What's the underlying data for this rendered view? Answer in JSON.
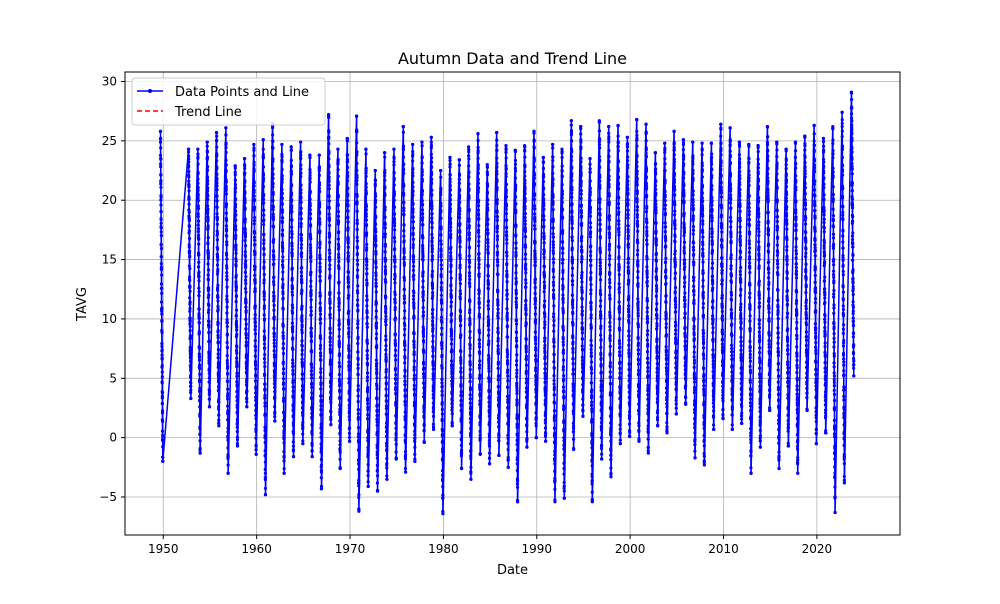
{
  "chart_data": {
    "type": "line",
    "title": "Autumn Data and Trend Line",
    "xlabel": "Date",
    "ylabel": "TAVG",
    "xlim": [
      1945.9,
      2028.9
    ],
    "ylim": [
      -8.2,
      30.8
    ],
    "x_ticks": [
      1950,
      1960,
      1970,
      1980,
      1990,
      2000,
      2010,
      2020
    ],
    "x_tick_labels": [
      "1950",
      "1960",
      "1970",
      "1980",
      "1990",
      "2000",
      "2010",
      "2020"
    ],
    "y_ticks": [
      -5,
      0,
      5,
      10,
      15,
      20,
      25,
      30
    ],
    "y_tick_labels": [
      "−5",
      "0",
      "5",
      "10",
      "15",
      "20",
      "25",
      "30"
    ],
    "grid": true,
    "legend_position": "upper-left",
    "series": [
      {
        "name": "Data Points and Line",
        "color": "#0000ff",
        "style": "solid-with-point-markers",
        "points_per_season": 90,
        "seasons": [
          {
            "year": 1949.7,
            "start": 25.8,
            "min": -2.0
          },
          {
            "year": 1952.7,
            "start": 24.3,
            "min": 3.3
          },
          {
            "year": 1953.7,
            "start": 24.3,
            "min": -1.3
          },
          {
            "year": 1954.7,
            "start": 24.9,
            "min": 2.6
          },
          {
            "year": 1955.7,
            "start": 25.7,
            "min": 1.0
          },
          {
            "year": 1956.7,
            "start": 26.1,
            "min": -3.0
          },
          {
            "year": 1957.7,
            "start": 22.9,
            "min": -0.7
          },
          {
            "year": 1958.7,
            "start": 23.5,
            "min": 2.6
          },
          {
            "year": 1959.7,
            "start": 24.7,
            "min": -1.4
          },
          {
            "year": 1960.7,
            "start": 25.1,
            "min": -4.8
          },
          {
            "year": 1961.7,
            "start": 26.5,
            "min": 1.4
          },
          {
            "year": 1962.7,
            "start": 24.7,
            "min": -3.0
          },
          {
            "year": 1963.7,
            "start": 24.5,
            "min": -1.6
          },
          {
            "year": 1964.7,
            "start": 24.9,
            "min": -0.5
          },
          {
            "year": 1965.7,
            "start": 23.8,
            "min": -1.6
          },
          {
            "year": 1966.7,
            "start": 23.8,
            "min": -4.3
          },
          {
            "year": 1967.7,
            "start": 27.2,
            "min": 1.1
          },
          {
            "year": 1968.7,
            "start": 24.3,
            "min": -2.6
          },
          {
            "year": 1969.7,
            "start": 25.2,
            "min": -0.3
          },
          {
            "year": 1970.7,
            "start": 27.1,
            "min": -6.2
          },
          {
            "year": 1971.7,
            "start": 24.3,
            "min": -4.1
          },
          {
            "year": 1972.7,
            "start": 22.5,
            "min": -4.5
          },
          {
            "year": 1973.7,
            "start": 24.0,
            "min": -3.5
          },
          {
            "year": 1974.7,
            "start": 24.3,
            "min": -1.8
          },
          {
            "year": 1975.7,
            "start": 26.2,
            "min": -2.9
          },
          {
            "year": 1976.7,
            "start": 24.7,
            "min": -2.0
          },
          {
            "year": 1977.7,
            "start": 24.9,
            "min": -0.4
          },
          {
            "year": 1978.7,
            "start": 25.3,
            "min": 0.7
          },
          {
            "year": 1979.7,
            "start": 22.5,
            "min": -6.4
          },
          {
            "year": 1980.7,
            "start": 23.6,
            "min": 1.0
          },
          {
            "year": 1981.7,
            "start": 23.4,
            "min": -2.6
          },
          {
            "year": 1982.7,
            "start": 24.5,
            "min": -3.5
          },
          {
            "year": 1983.7,
            "start": 25.6,
            "min": -1.4
          },
          {
            "year": 1984.7,
            "start": 23.0,
            "min": -2.2
          },
          {
            "year": 1985.7,
            "start": 25.7,
            "min": -1.5
          },
          {
            "year": 1986.7,
            "start": 24.6,
            "min": -2.5
          },
          {
            "year": 1987.7,
            "start": 24.2,
            "min": -5.4
          },
          {
            "year": 1988.7,
            "start": 24.6,
            "min": -0.8
          },
          {
            "year": 1989.7,
            "start": 25.8,
            "min": 0.0
          },
          {
            "year": 1990.7,
            "start": 23.6,
            "min": -0.3
          },
          {
            "year": 1991.7,
            "start": 24.7,
            "min": -5.4
          },
          {
            "year": 1992.7,
            "start": 24.3,
            "min": -5.1
          },
          {
            "year": 1993.7,
            "start": 26.7,
            "min": -1.0
          },
          {
            "year": 1994.7,
            "start": 26.2,
            "min": 1.8
          },
          {
            "year": 1995.7,
            "start": 23.5,
            "min": -5.4
          },
          {
            "year": 1996.7,
            "start": 26.7,
            "min": -1.8
          },
          {
            "year": 1997.7,
            "start": 26.2,
            "min": -3.3
          },
          {
            "year": 1998.7,
            "start": 26.3,
            "min": -0.5
          },
          {
            "year": 1999.7,
            "start": 25.3,
            "min": 0.1
          },
          {
            "year": 2000.7,
            "start": 26.8,
            "min": -0.3
          },
          {
            "year": 2001.7,
            "start": 26.4,
            "min": -1.3
          },
          {
            "year": 2002.7,
            "start": 24.0,
            "min": 1.0
          },
          {
            "year": 2003.7,
            "start": 24.8,
            "min": 0.4
          },
          {
            "year": 2004.7,
            "start": 25.8,
            "min": 2.0
          },
          {
            "year": 2005.7,
            "start": 25.1,
            "min": 2.8
          },
          {
            "year": 2006.7,
            "start": 24.9,
            "min": -1.7
          },
          {
            "year": 2007.7,
            "start": 24.8,
            "min": -2.3
          },
          {
            "year": 2008.7,
            "start": 24.8,
            "min": 0.7
          },
          {
            "year": 2009.7,
            "start": 26.4,
            "min": 1.6
          },
          {
            "year": 2010.7,
            "start": 26.1,
            "min": 0.7
          },
          {
            "year": 2011.7,
            "start": 24.9,
            "min": 1.2
          },
          {
            "year": 2012.7,
            "start": 24.7,
            "min": -3.0
          },
          {
            "year": 2013.7,
            "start": 24.6,
            "min": -0.8
          },
          {
            "year": 2014.7,
            "start": 26.2,
            "min": 2.3
          },
          {
            "year": 2015.7,
            "start": 24.9,
            "min": -2.6
          },
          {
            "year": 2016.7,
            "start": 24.3,
            "min": -0.7
          },
          {
            "year": 2017.7,
            "start": 24.9,
            "min": -3.0
          },
          {
            "year": 2018.7,
            "start": 25.4,
            "min": 2.3
          },
          {
            "year": 2019.7,
            "start": 26.3,
            "min": -0.5
          },
          {
            "year": 2020.7,
            "start": 25.2,
            "min": 0.4
          },
          {
            "year": 2021.7,
            "start": 26.2,
            "min": -6.3
          },
          {
            "year": 2022.7,
            "start": 27.4,
            "min": -3.8
          },
          {
            "year": 2023.7,
            "start": 29.1,
            "min": 5.2
          }
        ]
      },
      {
        "name": "Trend Line",
        "color": "#ff0000",
        "style": "dashed",
        "x": [],
        "y": []
      }
    ]
  }
}
